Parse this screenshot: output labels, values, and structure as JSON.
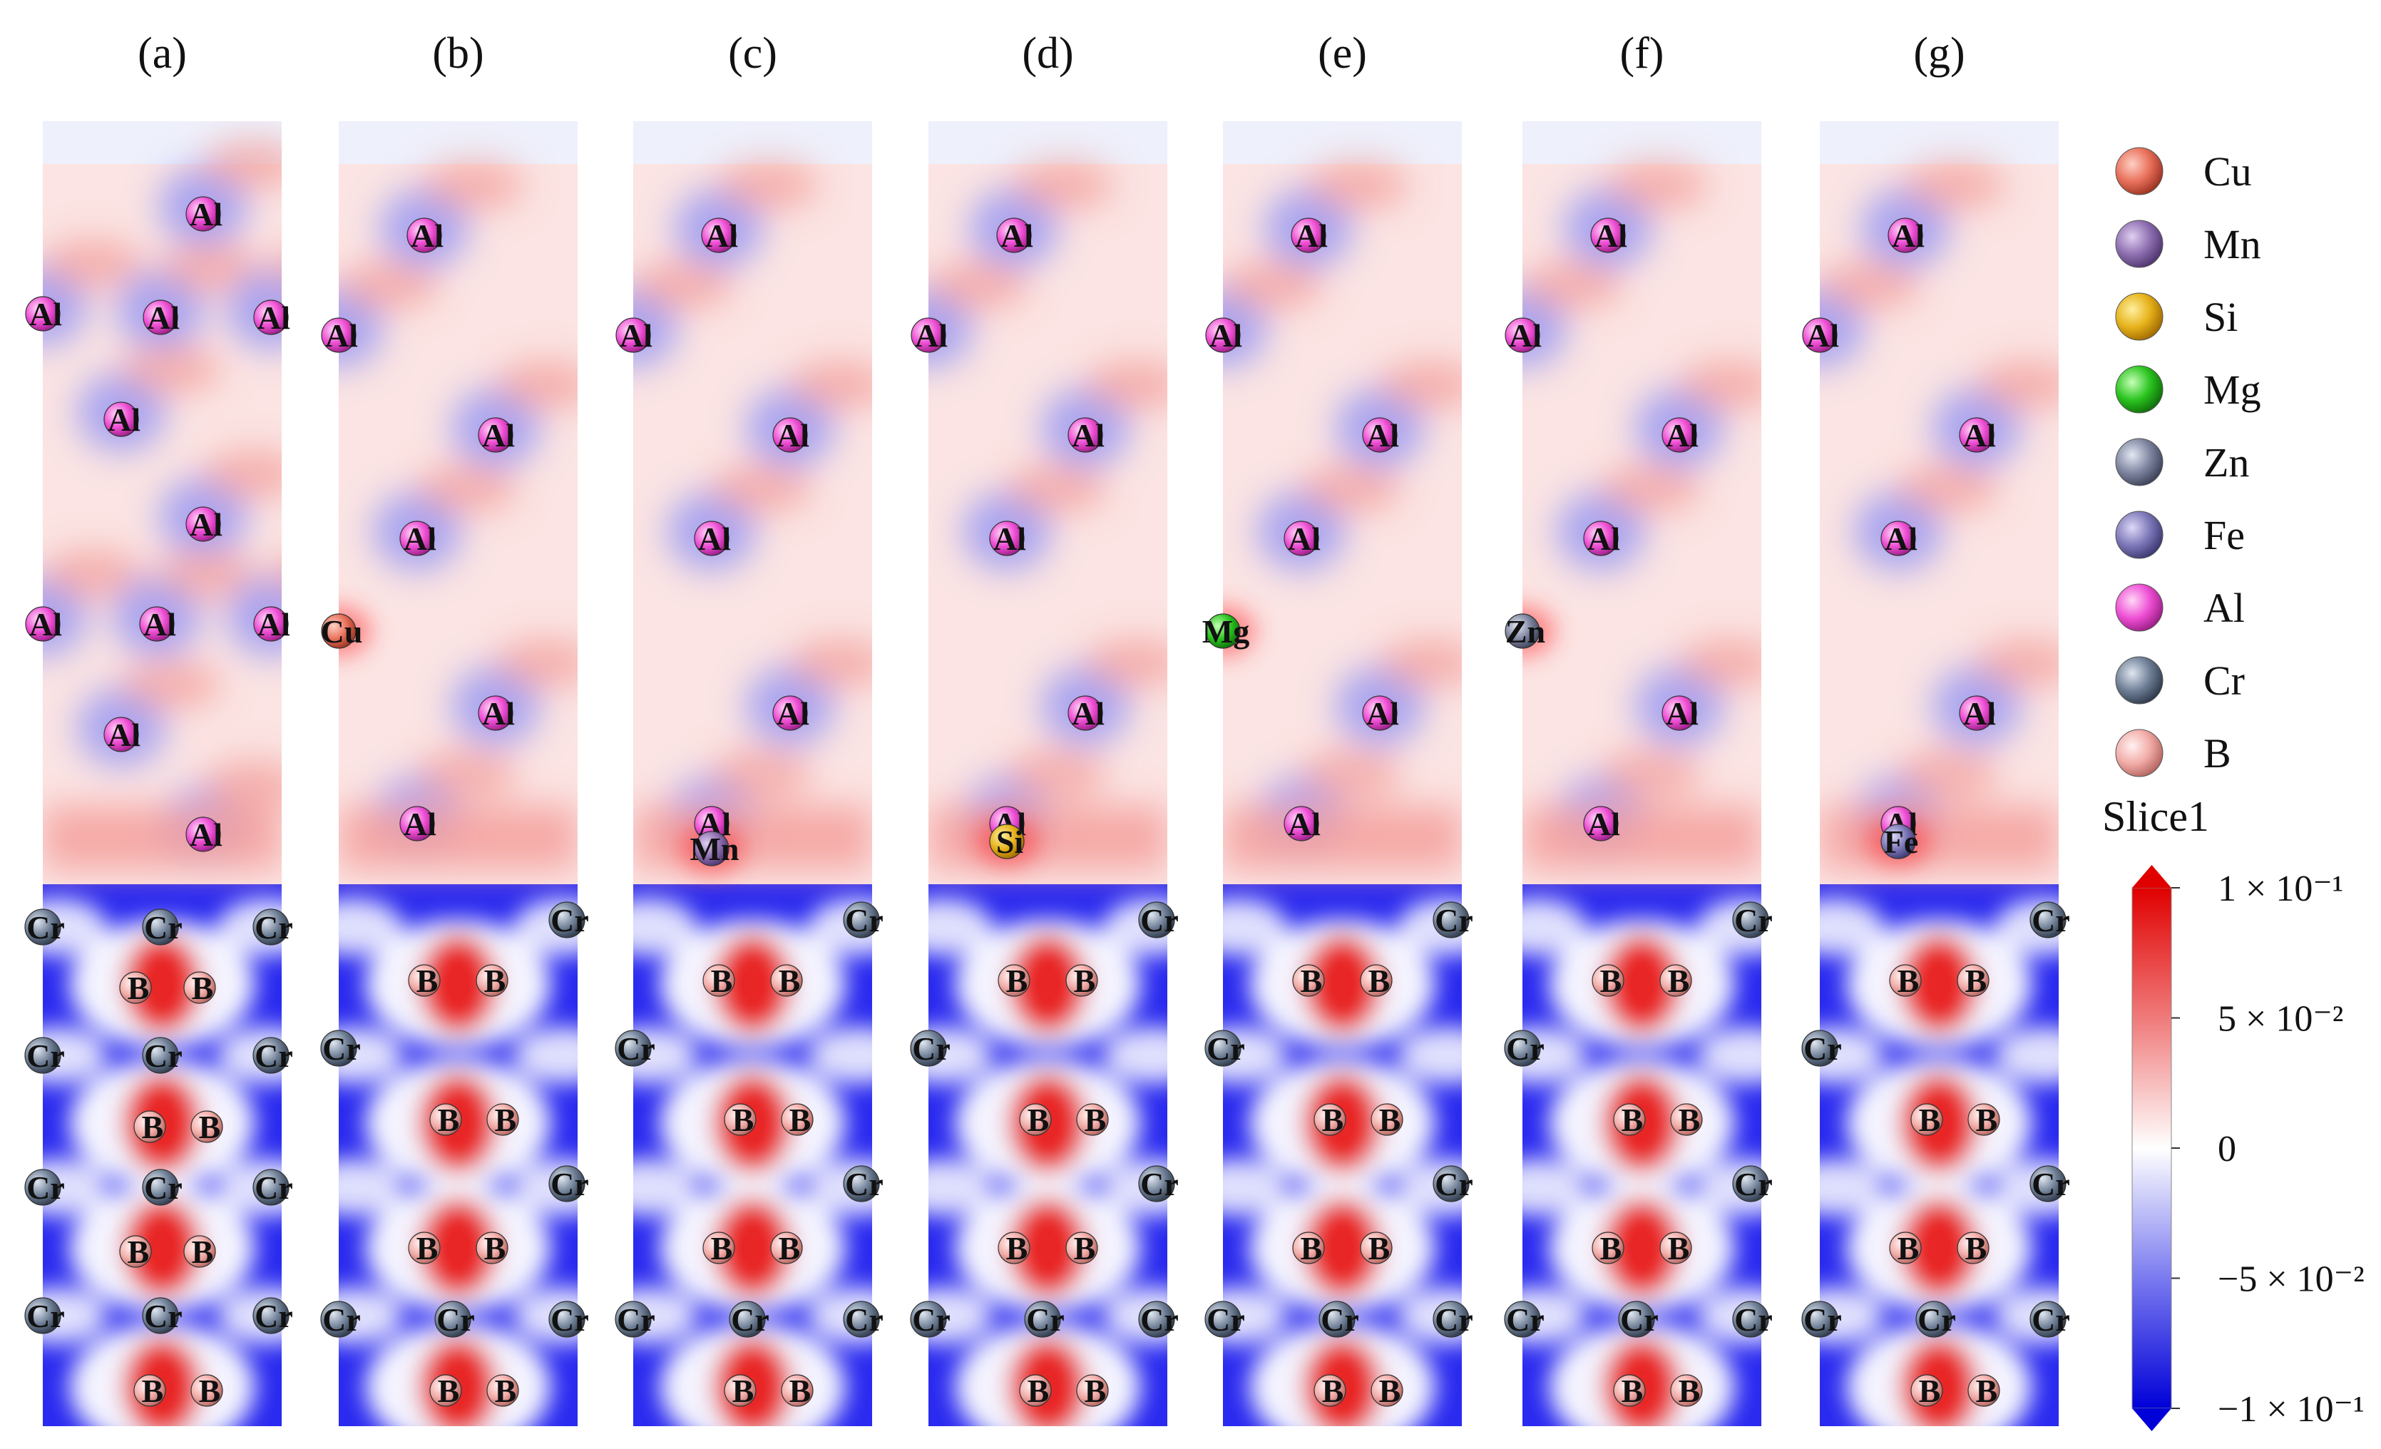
{
  "panels": [
    {
      "letter": "(a)",
      "variant": "a",
      "dopant": "",
      "dopant_key": ""
    },
    {
      "letter": "(b)",
      "variant": "b",
      "dopant": "Cu",
      "dopant_key": "Cu"
    },
    {
      "letter": "(c)",
      "variant": "b",
      "dopant": "Mn",
      "dopant_key": "Mn"
    },
    {
      "letter": "(d)",
      "variant": "b",
      "dopant": "Si",
      "dopant_key": "Si"
    },
    {
      "letter": "(e)",
      "variant": "b",
      "dopant": "Mg",
      "dopant_key": "Mg"
    },
    {
      "letter": "(f)",
      "variant": "b",
      "dopant": "Zn",
      "dopant_key": "Zn"
    },
    {
      "letter": "(g)",
      "variant": "b",
      "dopant": "Fe",
      "dopant_key": "Fe"
    }
  ],
  "labels": {
    "al": "Al",
    "cr": "Cr",
    "b": "B"
  },
  "legend": [
    {
      "label": "Cu",
      "color": "#e8705a"
    },
    {
      "label": "Mn",
      "color": "#8e6fb0"
    },
    {
      "label": "Si",
      "color": "#e6b21a"
    },
    {
      "label": "Mg",
      "color": "#2bc41f"
    },
    {
      "label": "Zn",
      "color": "#7f86a0"
    },
    {
      "label": "Fe",
      "color": "#7d78b8"
    },
    {
      "label": "Al",
      "color": "#ee4fd4"
    },
    {
      "label": "Cr",
      "color": "#6f7f96"
    },
    {
      "label": "B",
      "color": "#f2aca8"
    }
  ],
  "colorbar": {
    "title": "Slice1",
    "ticks": [
      "1 × 10⁻¹",
      "5 × 10⁻²",
      "0",
      "−5 × 10⁻²",
      "−1 × 10⁻¹"
    ],
    "max_color": "#e00000",
    "min_color": "#0000d8"
  }
}
